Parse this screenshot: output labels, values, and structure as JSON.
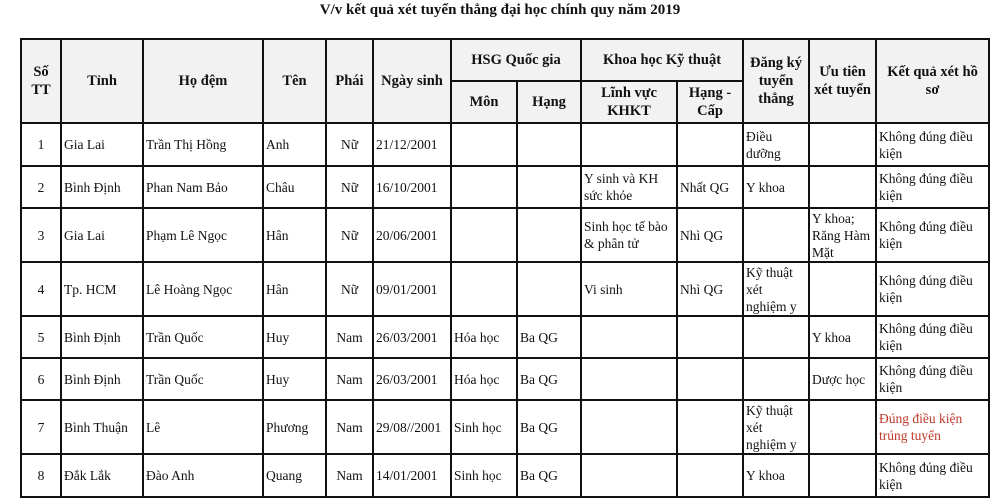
{
  "title": "V/v kết quả xét tuyển thẳng đại học chính quy năm 2019",
  "headers": {
    "stt": "Số TT",
    "tinh": "Tỉnh",
    "ho_dem": "Họ đệm",
    "ten": "Tên",
    "phai": "Phái",
    "ngay_sinh": "Ngày sinh",
    "hsg": "HSG Quốc gia",
    "hsg_mon": "Môn",
    "hsg_hang": "Hạng",
    "khkt": "Khoa học Kỹ thuật",
    "khkt_linh_vuc": "Lĩnh vực KHKT",
    "khkt_hang": "Hạng - Cấp",
    "dang_ky": "Đăng ký tuyển thẳng",
    "uu_tien": "Ưu tiên xét tuyển",
    "ket_qua": "Kết quả xét hồ sơ"
  },
  "rows": [
    {
      "stt": "1",
      "tinh": "Gia Lai",
      "ho_dem": "Trần Thị Hồng",
      "ten": "Anh",
      "phai": "Nữ",
      "ngay_sinh": "21/12/2001",
      "hsg_mon": "",
      "hsg_hang": "",
      "khkt_linh_vuc": "",
      "khkt_hang": "",
      "dang_ky": "Điều dưỡng",
      "uu_tien": "",
      "ket_qua": "Không đúng điều kiện"
    },
    {
      "stt": "2",
      "tinh": "Bình Định",
      "ho_dem": "Phan Nam Bảo",
      "ten": "Châu",
      "phai": "Nữ",
      "ngay_sinh": "16/10/2001",
      "hsg_mon": "",
      "hsg_hang": "",
      "khkt_linh_vuc": "Y sinh và KH sức khỏe",
      "khkt_hang": "Nhất QG",
      "dang_ky": "Y khoa",
      "uu_tien": "",
      "ket_qua": "Không đúng điều kiện"
    },
    {
      "stt": "3",
      "tinh": "Gia Lai",
      "ho_dem": "Phạm Lê Ngọc",
      "ten": "Hân",
      "phai": "Nữ",
      "ngay_sinh": "20/06/2001",
      "hsg_mon": "",
      "hsg_hang": "",
      "khkt_linh_vuc": "Sinh học tế bào & phân tử",
      "khkt_hang": "Nhì QG",
      "dang_ky": "",
      "uu_tien": "Y khoa; Răng Hàm Mặt",
      "ket_qua": "Không đúng điều kiện"
    },
    {
      "stt": "4",
      "tinh": "Tp. HCM",
      "ho_dem": "Lê Hoàng Ngọc",
      "ten": "Hân",
      "phai": "Nữ",
      "ngay_sinh": "09/01/2001",
      "hsg_mon": "",
      "hsg_hang": "",
      "khkt_linh_vuc": "Vi sinh",
      "khkt_hang": "Nhì QG",
      "dang_ky": "Kỹ thuật xét nghiệm y",
      "uu_tien": "",
      "ket_qua": "Không đúng điều kiện"
    },
    {
      "stt": "5",
      "tinh": "Bình Định",
      "ho_dem": "Trần Quốc",
      "ten": "Huy",
      "phai": "Nam",
      "ngay_sinh": "26/03/2001",
      "hsg_mon": "Hóa học",
      "hsg_hang": "Ba QG",
      "khkt_linh_vuc": "",
      "khkt_hang": "",
      "dang_ky": "",
      "uu_tien": "Y khoa",
      "ket_qua": "Không đúng điều kiện"
    },
    {
      "stt": "6",
      "tinh": "Bình Định",
      "ho_dem": "Trần Quốc",
      "ten": "Huy",
      "phai": "Nam",
      "ngay_sinh": "26/03/2001",
      "hsg_mon": "Hóa học",
      "hsg_hang": "Ba QG",
      "khkt_linh_vuc": "",
      "khkt_hang": "",
      "dang_ky": "",
      "uu_tien": "Dược học",
      "ket_qua": "Không đúng điều kiện"
    },
    {
      "stt": "7",
      "tinh": "Bình Thuận",
      "ho_dem": "Lê",
      "ten": "Phương",
      "phai": "Nam",
      "ngay_sinh": "29/08//2001",
      "hsg_mon": "Sinh học",
      "hsg_hang": "Ba QG",
      "khkt_linh_vuc": "",
      "khkt_hang": "",
      "dang_ky": "Kỹ thuật xét nghiệm y",
      "uu_tien": "",
      "ket_qua": "Đúng điều kiện trúng tuyển",
      "highlight": true
    },
    {
      "stt": "8",
      "tinh": "Đắk Lắk",
      "ho_dem": "Đào Anh",
      "ten": "Quang",
      "phai": "Nam",
      "ngay_sinh": "14/01/2001",
      "hsg_mon": "Sinh học",
      "hsg_hang": "Ba QG",
      "khkt_linh_vuc": "",
      "khkt_hang": "",
      "dang_ky": "Y khoa",
      "uu_tien": "",
      "ket_qua": "Không đúng điều kiện"
    }
  ],
  "colors": {
    "header_bg": "#f2f2f2",
    "highlight_text": "#c0392b",
    "border": "#111111"
  }
}
